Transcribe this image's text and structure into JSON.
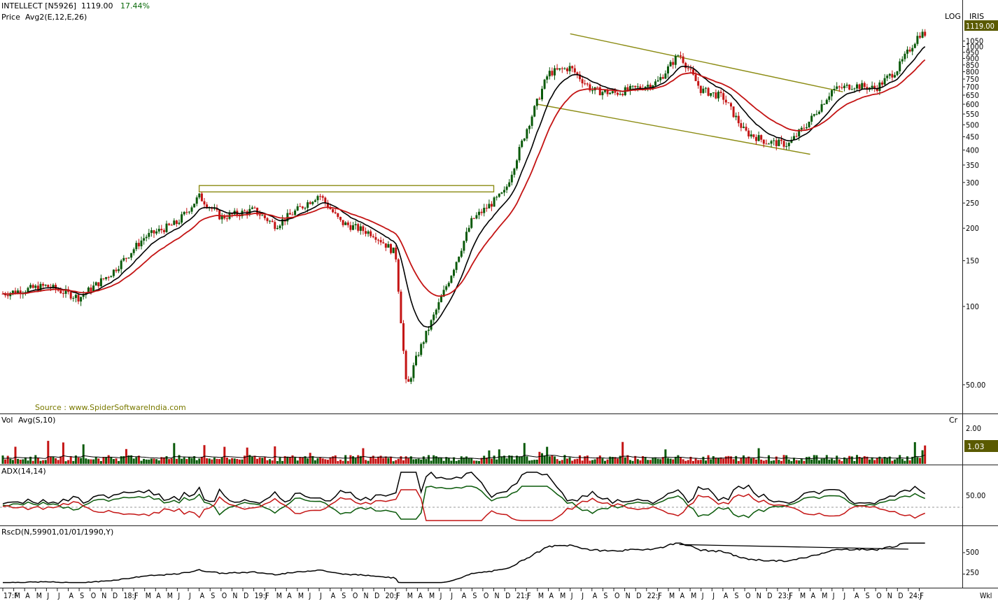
{
  "header": {
    "symbol": "INTELLECT [N5926]",
    "price": "1119.00",
    "change": "17.44%",
    "price_study": "Price",
    "price_study_detail": "Avg2(E,12,E,26)",
    "scale_mode": "LOG",
    "vendor": "IRIS"
  },
  "price_panel": {
    "last_price_tag": "1119.00",
    "source_text": "Source : www.SpiderSoftwareIndia.com",
    "y_ticks": [
      "1050",
      "1000",
      "950",
      "900",
      "850",
      "800",
      "750",
      "700",
      "650",
      "600",
      "550",
      "500",
      "450",
      "400",
      "350",
      "300",
      "250",
      "200",
      "150",
      "100",
      "50.00"
    ]
  },
  "volume_panel": {
    "title": "Vol",
    "study": "Avg(S,10)",
    "unit": "Cr",
    "y_tick": "2.00",
    "last_tag": "1.03"
  },
  "adx_panel": {
    "title": "ADX(14,14)",
    "y_tick": "50.00"
  },
  "rsc_panel": {
    "title": "RscD(N,59901,01/01/1990,Y)",
    "y_ticks": [
      "500",
      "250"
    ]
  },
  "x_axis": {
    "labels": [
      "17:F",
      "M",
      "A",
      "M",
      "J",
      "J",
      "A",
      "S",
      "O",
      "N",
      "D",
      "18:J",
      "F",
      "M",
      "A",
      "M",
      "J",
      "J",
      "A",
      "S",
      "O",
      "N",
      "D",
      "19:J",
      "F",
      "M",
      "A",
      "M",
      "J",
      "J",
      "A",
      "S",
      "O",
      "N",
      "D",
      "20:J",
      "F",
      "M",
      "A",
      "M",
      "J",
      "J",
      "A",
      "S",
      "O",
      "N",
      "D",
      "21:J",
      "F",
      "M",
      "A",
      "M",
      "J",
      "J",
      "A",
      "S",
      "O",
      "N",
      "D",
      "22:J",
      "F",
      "M",
      "A",
      "M",
      "J",
      "J",
      "A",
      "S",
      "O",
      "N",
      "D",
      "23:J",
      "F",
      "M",
      "A",
      "M",
      "J",
      "J",
      "A",
      "S",
      "O",
      "N",
      "D",
      "24:J",
      "F"
    ],
    "period": "Wkl"
  },
  "colors": {
    "up": "#0a5a0a",
    "down": "#c41414",
    "ema_fast": "#000000",
    "ema_slow": "#c41414",
    "trendline": "#8c8c14",
    "tag_bg": "#5a5a00"
  },
  "chart_data": {
    "type": "candlestick",
    "scale": "log",
    "xlim": [
      "2017-02",
      "2024-02"
    ],
    "ylim": [
      42,
      1150
    ],
    "series": [
      {
        "name": "Price",
        "x": [
          "2017-02",
          "2017-06",
          "2017-09",
          "2017-12",
          "2018-03",
          "2018-06",
          "2018-08",
          "2018-10",
          "2019-01",
          "2019-03",
          "2019-07",
          "2019-09",
          "2019-12",
          "2020-02",
          "2020-03",
          "2020-04",
          "2020-07",
          "2020-09",
          "2020-12",
          "2021-02",
          "2021-04",
          "2021-06",
          "2021-08",
          "2021-10",
          "2021-12",
          "2022-02",
          "2022-04",
          "2022-06",
          "2022-08",
          "2022-10",
          "2022-12",
          "2023-02",
          "2023-04",
          "2023-06",
          "2023-08",
          "2023-10",
          "2023-12",
          "2024-02"
        ],
        "values": [
          112,
          120,
          108,
          135,
          185,
          210,
          265,
          220,
          235,
          205,
          270,
          210,
          190,
          160,
          48,
          65,
          130,
          215,
          275,
          480,
          790,
          830,
          680,
          660,
          690,
          730,
          940,
          680,
          640,
          470,
          430,
          420,
          520,
          680,
          710,
          690,
          820,
          1119
        ]
      },
      {
        "name": "Avg2(E,12,E,26)",
        "values": [
          125,
          118,
          115,
          128,
          165,
          190,
          230,
          225,
          220,
          215,
          240,
          225,
          210,
          180,
          120,
          75,
          100,
          170,
          245,
          380,
          650,
          760,
          710,
          680,
          690,
          700,
          800,
          660,
          620,
          520,
          450,
          430,
          460,
          590,
          680,
          660,
          760,
          900
        ]
      }
    ],
    "volume": {
      "unit": "Cr",
      "ymax": 2.0,
      "last": 1.03
    },
    "adx": {
      "level": 50
    },
    "rscd": {
      "levels": [
        500,
        250
      ]
    }
  }
}
